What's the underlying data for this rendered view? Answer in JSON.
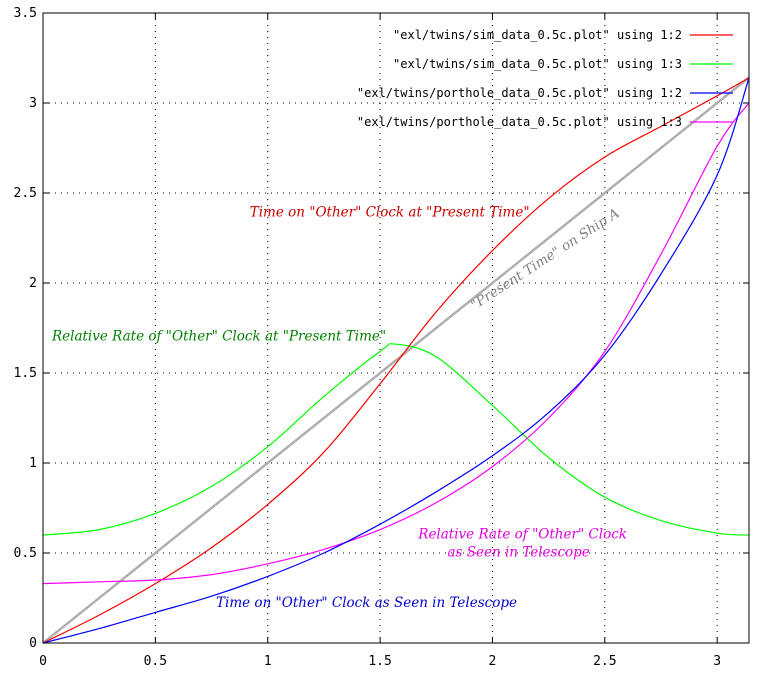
{
  "chart_data": {
    "type": "line",
    "title": "",
    "xlabel": "",
    "ylabel": "",
    "xlim": [
      0,
      3.14159
    ],
    "ylim": [
      0,
      3.5
    ],
    "x_ticks": [
      {
        "value": 0,
        "label": "0"
      },
      {
        "value": 0.5,
        "label": "0.5"
      },
      {
        "value": 1,
        "label": "1"
      },
      {
        "value": 1.5,
        "label": "1.5"
      },
      {
        "value": 2,
        "label": "2"
      },
      {
        "value": 2.5,
        "label": "2.5"
      },
      {
        "value": 3,
        "label": "3"
      }
    ],
    "y_ticks": [
      {
        "value": 0,
        "label": "0"
      },
      {
        "value": 0.5,
        "label": "0.5"
      },
      {
        "value": 1,
        "label": "1"
      },
      {
        "value": 1.5,
        "label": "1.5"
      },
      {
        "value": 2,
        "label": "2"
      },
      {
        "value": 2.5,
        "label": "2.5"
      },
      {
        "value": 3,
        "label": "3"
      },
      {
        "value": 3.5,
        "label": "3.5"
      }
    ],
    "grid": "dotted",
    "legend_position": "top-right",
    "series": [
      {
        "name": "\"exl/twins/sim_data_0.5c.plot\" using 1:2",
        "color": "#ff0000",
        "x": [
          0,
          0.25,
          0.5,
          0.75,
          1.0,
          1.25,
          1.5,
          1.75,
          2.0,
          2.25,
          2.5,
          2.75,
          3.0,
          3.1416
        ],
        "y": [
          0,
          0.155,
          0.33,
          0.53,
          0.77,
          1.06,
          1.44,
          1.84,
          2.18,
          2.47,
          2.7,
          2.87,
          3.04,
          3.14
        ]
      },
      {
        "name": "\"exl/twins/sim_data_0.5c.plot\" using 1:3",
        "color": "#00ff00",
        "x": [
          0,
          0.25,
          0.5,
          0.75,
          1.0,
          1.25,
          1.5,
          1.571,
          1.75,
          2.0,
          2.25,
          2.5,
          2.75,
          3.0,
          3.1416
        ],
        "y": [
          0.6,
          0.63,
          0.72,
          0.87,
          1.09,
          1.37,
          1.62,
          1.66,
          1.59,
          1.32,
          1.03,
          0.81,
          0.68,
          0.61,
          0.6
        ]
      },
      {
        "name": "\"exl/twins/porthole_data_0.5c.plot\" using 1:2",
        "color": "#0000ff",
        "x": [
          0,
          0.25,
          0.5,
          0.75,
          1.0,
          1.25,
          1.5,
          1.75,
          2.0,
          2.25,
          2.5,
          2.75,
          3.0,
          3.1416
        ],
        "y": [
          0,
          0.08,
          0.17,
          0.26,
          0.37,
          0.5,
          0.66,
          0.84,
          1.04,
          1.28,
          1.6,
          2.05,
          2.6,
          3.14
        ]
      },
      {
        "name": "\"exl/twins/porthole_data_0.5c.plot\" using 1:3",
        "color": "#ff00ff",
        "x": [
          0,
          0.25,
          0.5,
          0.75,
          1.0,
          1.25,
          1.5,
          1.75,
          2.0,
          2.25,
          2.5,
          2.75,
          3.0,
          3.1416
        ],
        "y": [
          0.33,
          0.34,
          0.35,
          0.38,
          0.44,
          0.52,
          0.63,
          0.78,
          0.98,
          1.25,
          1.62,
          2.16,
          2.76,
          3.0
        ]
      },
      {
        "color": "#b0b0b0",
        "x": [
          0,
          3.1416
        ],
        "y": [
          0,
          3.1416
        ]
      }
    ],
    "annotations": [
      {
        "text": "Time on  \"Other\" Clock at \"Present Time\"",
        "color": "#cc0000",
        "x": 0.92,
        "y": 2.37,
        "rotate": 0
      },
      {
        "text": "\"Present Time\" on Ship A",
        "color": "#808080",
        "x": 1.92,
        "y": 1.85,
        "rotate": -33
      },
      {
        "text": "Relative Rate of \"Other\" Clock at \"Present Time\"",
        "color": "#008000",
        "x": 0.04,
        "y": 1.68,
        "rotate": 0
      },
      {
        "text": "Relative Rate of  \"Other\" Clock",
        "color": "#e000e0",
        "x": 1.67,
        "y": 0.58,
        "rotate": 0
      },
      {
        "text": "as Seen in Telescope",
        "color": "#e000e0",
        "x": 1.8,
        "y": 0.48,
        "rotate": 0
      },
      {
        "text": "Time on  \"Other\" Clock as Seen in Telescope",
        "color": "#0000cc",
        "x": 0.77,
        "y": 0.2,
        "rotate": 0
      }
    ]
  }
}
